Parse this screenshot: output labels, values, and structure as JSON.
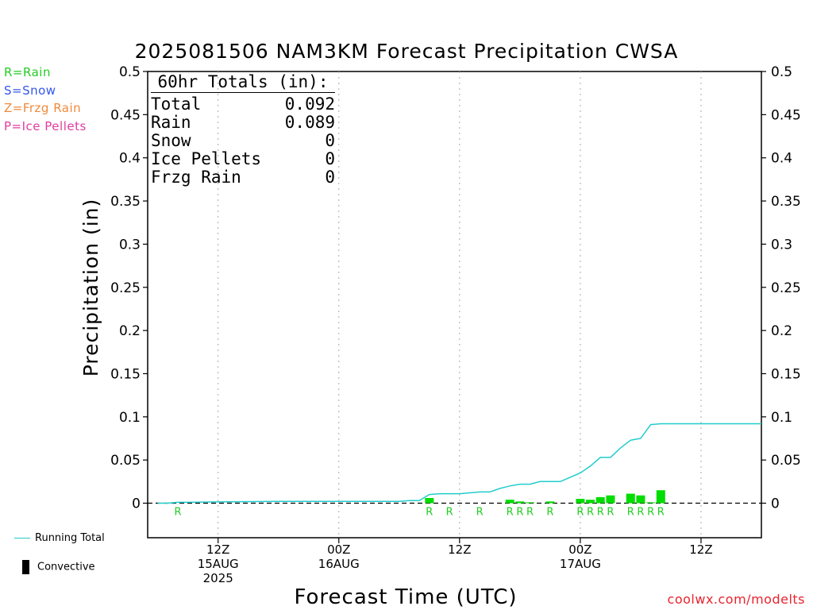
{
  "header": {
    "title": "2025081506 NAM3KM Forecast Precipitation CWSA",
    "watermark": "coolwx.com/modelts"
  },
  "precip_key": [
    {
      "label": "R=Rain",
      "color": "#22cc22"
    },
    {
      "label": "S=Snow",
      "color": "#3355ee"
    },
    {
      "label": "Z=Frzg Rain",
      "color": "#f08a3a"
    },
    {
      "label": "P=Ice Pellets",
      "color": "#e03ca0"
    }
  ],
  "totals": {
    "heading": "60hr Totals (in):",
    "rows": [
      {
        "label": "Total",
        "value": "0.092"
      },
      {
        "label": "Rain",
        "value": "0.089"
      },
      {
        "label": "Snow",
        "value": "0"
      },
      {
        "label": "Ice Pellets",
        "value": "0"
      },
      {
        "label": "Frzg Rain",
        "value": "0"
      }
    ]
  },
  "bottom_legend": {
    "running_total": "Running Total",
    "convective": "Convective"
  },
  "colors": {
    "running_total": "#22cccc",
    "bar": "#00dd00",
    "rain_marker": "#22cc22",
    "grid": "#aaaaaa"
  },
  "chart_data": {
    "type": "bar",
    "title": "2025081506 NAM3KM Forecast Precipitation CWSA",
    "xlabel": "Forecast Time (UTC)",
    "ylabel": "Precipitation (in)",
    "ylim": [
      -0.04,
      0.5
    ],
    "yticks": [
      "0.5",
      "0.45",
      "0.4",
      "0.35",
      "0.3",
      "0.25",
      "0.2",
      "0.15",
      "0.1",
      "0.05",
      "0"
    ],
    "ytick_values": [
      0.5,
      0.45,
      0.4,
      0.35,
      0.3,
      0.25,
      0.2,
      0.15,
      0.1,
      0.05,
      0
    ],
    "x_unit": "forecast hour",
    "xlim": [
      -1,
      60
    ],
    "grid": "vertical dotted at 12Z/00Z ticks",
    "xticks": [
      {
        "hour": 6,
        "lines": [
          "12Z",
          "15AUG",
          "2025"
        ]
      },
      {
        "hour": 18,
        "lines": [
          "00Z",
          "16AUG"
        ]
      },
      {
        "hour": 30,
        "lines": [
          "12Z"
        ]
      },
      {
        "hour": 42,
        "lines": [
          "00Z",
          "17AUG"
        ]
      },
      {
        "hour": 54,
        "lines": [
          "12Z"
        ]
      }
    ],
    "series": [
      {
        "name": "Running Total",
        "kind": "line",
        "x": [
          0,
          1,
          2,
          3,
          6,
          12,
          18,
          24,
          25,
          26,
          27,
          28,
          29,
          30,
          31,
          32,
          33,
          34,
          35,
          36,
          37,
          38,
          39,
          40,
          41,
          42,
          43,
          44,
          45,
          46,
          47,
          48,
          49,
          50,
          51,
          52,
          53,
          60
        ],
        "values": [
          0,
          0,
          0.001,
          0.001,
          0.0015,
          0.002,
          0.002,
          0.002,
          0.003,
          0.003,
          0.01,
          0.011,
          0.011,
          0.011,
          0.012,
          0.013,
          0.013,
          0.017,
          0.02,
          0.022,
          0.022,
          0.025,
          0.025,
          0.025,
          0.03,
          0.035,
          0.043,
          0.053,
          0.053,
          0.064,
          0.073,
          0.075,
          0.091,
          0.092,
          0.092,
          0.092,
          0.092,
          0.092
        ]
      },
      {
        "name": "",
        "kind": "bar",
        "x": [
          27,
          35,
          36,
          37,
          39,
          42,
          43,
          44,
          45,
          47,
          48,
          49,
          50
        ],
        "values": [
          0.006,
          0.004,
          0.002,
          0.001,
          0.002,
          0.005,
          0.004,
          0.007,
          0.009,
          0.011,
          0.009,
          0.001,
          0.015
        ]
      }
    ],
    "type_markers": {
      "label": "R",
      "x": [
        2,
        27,
        29,
        32,
        35,
        36,
        37,
        39,
        42,
        43,
        44,
        45,
        47,
        48,
        49,
        50
      ]
    }
  }
}
